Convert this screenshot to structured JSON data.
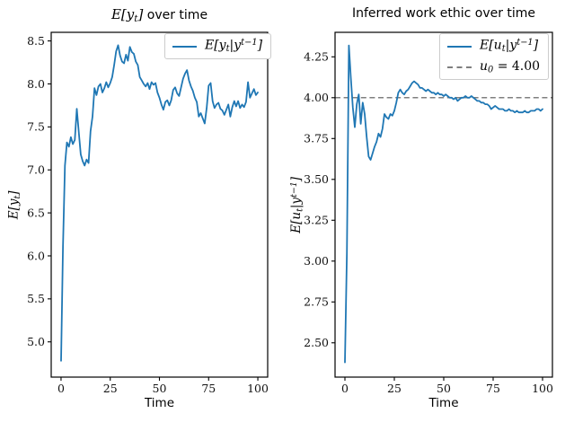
{
  "figure": {
    "background": "#ffffff",
    "accent_line_color": "#1f77b4",
    "ref_line_color": "#7f7f7f",
    "axis_color": "#000000",
    "legend_border_color": "#cccccc"
  },
  "left_panel": {
    "title": {
      "math_p1": "E[y",
      "math_sub": "t",
      "math_p2": "]",
      "suffix": " over time"
    },
    "ylabel": {
      "p1": "E[y",
      "sub": "t",
      "p2": "]"
    },
    "xlabel": "Time",
    "legend": {
      "entry1": {
        "p1": "E[y",
        "sub": "t",
        "p2": "|y",
        "sup": "t−1",
        "p3": "]"
      }
    }
  },
  "right_panel": {
    "title": {
      "text": "Inferred work ethic over time"
    },
    "ylabel": {
      "p1": "E[u",
      "sub": "t",
      "p2": "|y",
      "sup": "t−1",
      "p3": "]"
    },
    "xlabel": "Time",
    "legend": {
      "entry1": {
        "p1": "E[u",
        "sub": "t",
        "p2": "|y",
        "sup": "t−1",
        "p3": "]"
      },
      "entry2": {
        "p1": "u",
        "sub": "0",
        "p2": " = 4.00"
      }
    }
  },
  "chart_data": [
    {
      "type": "line",
      "title": "E[y_t] over time",
      "xlabel": "Time",
      "ylabel": "E[y_t]",
      "legend": [
        "E[y_t|y^{t-1}]"
      ],
      "legend_position": "upper right",
      "grid": false,
      "xlim": [
        -5,
        105
      ],
      "ylim": [
        4.59,
        8.6
      ],
      "x_ticks": [
        0,
        25,
        50,
        75,
        100
      ],
      "x_tick_labels": [
        "0",
        "25",
        "50",
        "75",
        "100"
      ],
      "y_ticks": [
        5.0,
        5.5,
        6.0,
        6.5,
        7.0,
        7.5,
        8.0,
        8.5
      ],
      "y_tick_labels": [
        "5.0",
        "5.5",
        "6.0",
        "6.5",
        "7.0",
        "7.5",
        "8.0",
        "8.5"
      ],
      "x_start": 0,
      "x_step": 1,
      "series": [
        {
          "name": "E[y_t|y^{t-1}]",
          "color": "#1f77b4",
          "style": "solid",
          "values": [
            4.78,
            6.1,
            7.05,
            7.32,
            7.27,
            7.38,
            7.3,
            7.35,
            7.71,
            7.44,
            7.18,
            7.1,
            7.05,
            7.12,
            7.08,
            7.45,
            7.62,
            7.95,
            7.87,
            7.97,
            8.0,
            7.9,
            7.95,
            8.02,
            7.96,
            8.01,
            8.08,
            8.22,
            8.38,
            8.45,
            8.33,
            8.26,
            8.24,
            8.34,
            8.27,
            8.43,
            8.37,
            8.35,
            8.26,
            8.22,
            8.08,
            8.04,
            8.0,
            7.97,
            8.01,
            7.94,
            8.02,
            7.99,
            8.01,
            7.9,
            7.84,
            7.76,
            7.7,
            7.79,
            7.81,
            7.75,
            7.81,
            7.93,
            7.96,
            7.89,
            7.86,
            7.96,
            8.06,
            8.12,
            8.16,
            8.04,
            7.97,
            7.92,
            7.84,
            7.79,
            7.62,
            7.66,
            7.6,
            7.54,
            7.72,
            7.98,
            8.01,
            7.8,
            7.72,
            7.76,
            7.78,
            7.71,
            7.69,
            7.64,
            7.7,
            7.76,
            7.62,
            7.73,
            7.8,
            7.74,
            7.8,
            7.72,
            7.76,
            7.73,
            7.79,
            8.02,
            7.84,
            7.89,
            7.94,
            7.87,
            7.9
          ]
        }
      ]
    },
    {
      "type": "line",
      "title": "Inferred work ethic over time",
      "xlabel": "Time",
      "ylabel": "E[u_t|y^{t-1}]",
      "legend": [
        "E[u_t|y^{t-1}]",
        "u_0 = 4.00"
      ],
      "legend_position": "upper right",
      "grid": false,
      "xlim": [
        -5,
        105
      ],
      "ylim": [
        2.29,
        4.4
      ],
      "x_ticks": [
        0,
        25,
        50,
        75,
        100
      ],
      "x_tick_labels": [
        "0",
        "25",
        "50",
        "75",
        "100"
      ],
      "y_ticks": [
        2.5,
        2.75,
        3.0,
        3.25,
        3.5,
        3.75,
        4.0,
        4.25
      ],
      "y_tick_labels": [
        "2.50",
        "2.75",
        "3.00",
        "3.25",
        "3.50",
        "3.75",
        "4.00",
        "4.25"
      ],
      "x_start": 0,
      "x_step": 1,
      "ref_line": {
        "value": 4.0,
        "label": "u_0 = 4.00",
        "color": "#7f7f7f",
        "style": "dashed"
      },
      "series": [
        {
          "name": "E[u_t|y^{t-1}]",
          "color": "#1f77b4",
          "style": "solid",
          "values": [
            2.38,
            3.05,
            4.32,
            4.12,
            3.94,
            3.82,
            3.96,
            4.02,
            3.84,
            3.97,
            3.9,
            3.76,
            3.64,
            3.62,
            3.66,
            3.7,
            3.73,
            3.78,
            3.76,
            3.81,
            3.9,
            3.88,
            3.87,
            3.9,
            3.89,
            3.92,
            3.97,
            4.03,
            4.05,
            4.03,
            4.02,
            4.04,
            4.05,
            4.07,
            4.09,
            4.1,
            4.09,
            4.08,
            4.06,
            4.06,
            4.05,
            4.04,
            4.05,
            4.04,
            4.03,
            4.03,
            4.02,
            4.03,
            4.02,
            4.02,
            4.01,
            4.02,
            4.01,
            4.0,
            4.0,
            3.99,
            4.0,
            3.98,
            3.99,
            4.0,
            4.0,
            4.01,
            4.0,
            4.0,
            4.01,
            4.0,
            3.99,
            3.98,
            3.98,
            3.97,
            3.97,
            3.96,
            3.96,
            3.95,
            3.93,
            3.94,
            3.95,
            3.94,
            3.93,
            3.93,
            3.93,
            3.92,
            3.92,
            3.93,
            3.92,
            3.92,
            3.91,
            3.92,
            3.91,
            3.91,
            3.91,
            3.92,
            3.91,
            3.91,
            3.92,
            3.92,
            3.92,
            3.93,
            3.93,
            3.92,
            3.93
          ]
        }
      ]
    }
  ]
}
